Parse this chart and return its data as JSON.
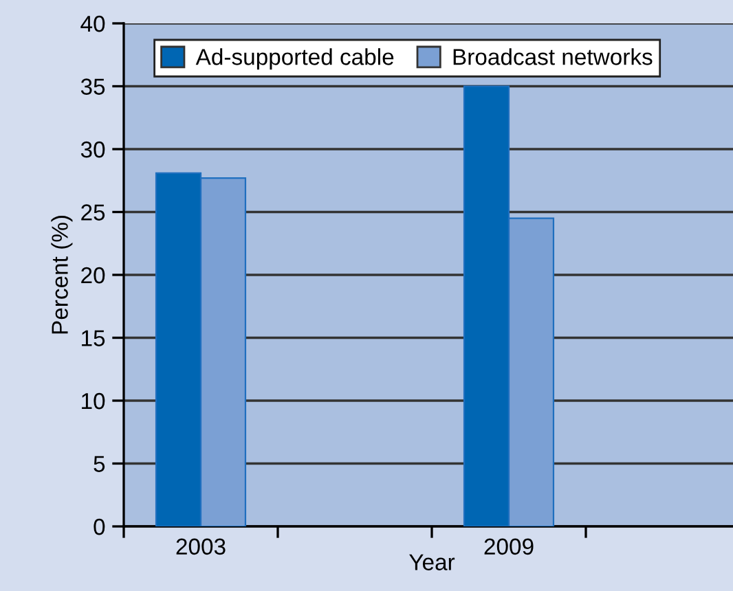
{
  "chart_data": {
    "type": "bar",
    "xlabel": "Year",
    "ylabel": "Percent (%)",
    "categories": [
      "2003",
      null,
      "2009",
      null
    ],
    "series": [
      {
        "name": "Ad-supported cable",
        "color": "#0066b3",
        "values": [
          28.1,
          null,
          35,
          null
        ]
      },
      {
        "name": "Broadcast networks",
        "color": "#7ba0d4",
        "values": [
          27.7,
          null,
          24.5,
          null
        ]
      }
    ],
    "ylim": [
      0,
      40
    ],
    "yticks": [
      0,
      5,
      10,
      15,
      20,
      25,
      30,
      35,
      40
    ],
    "grid": "y",
    "legend": "top"
  }
}
